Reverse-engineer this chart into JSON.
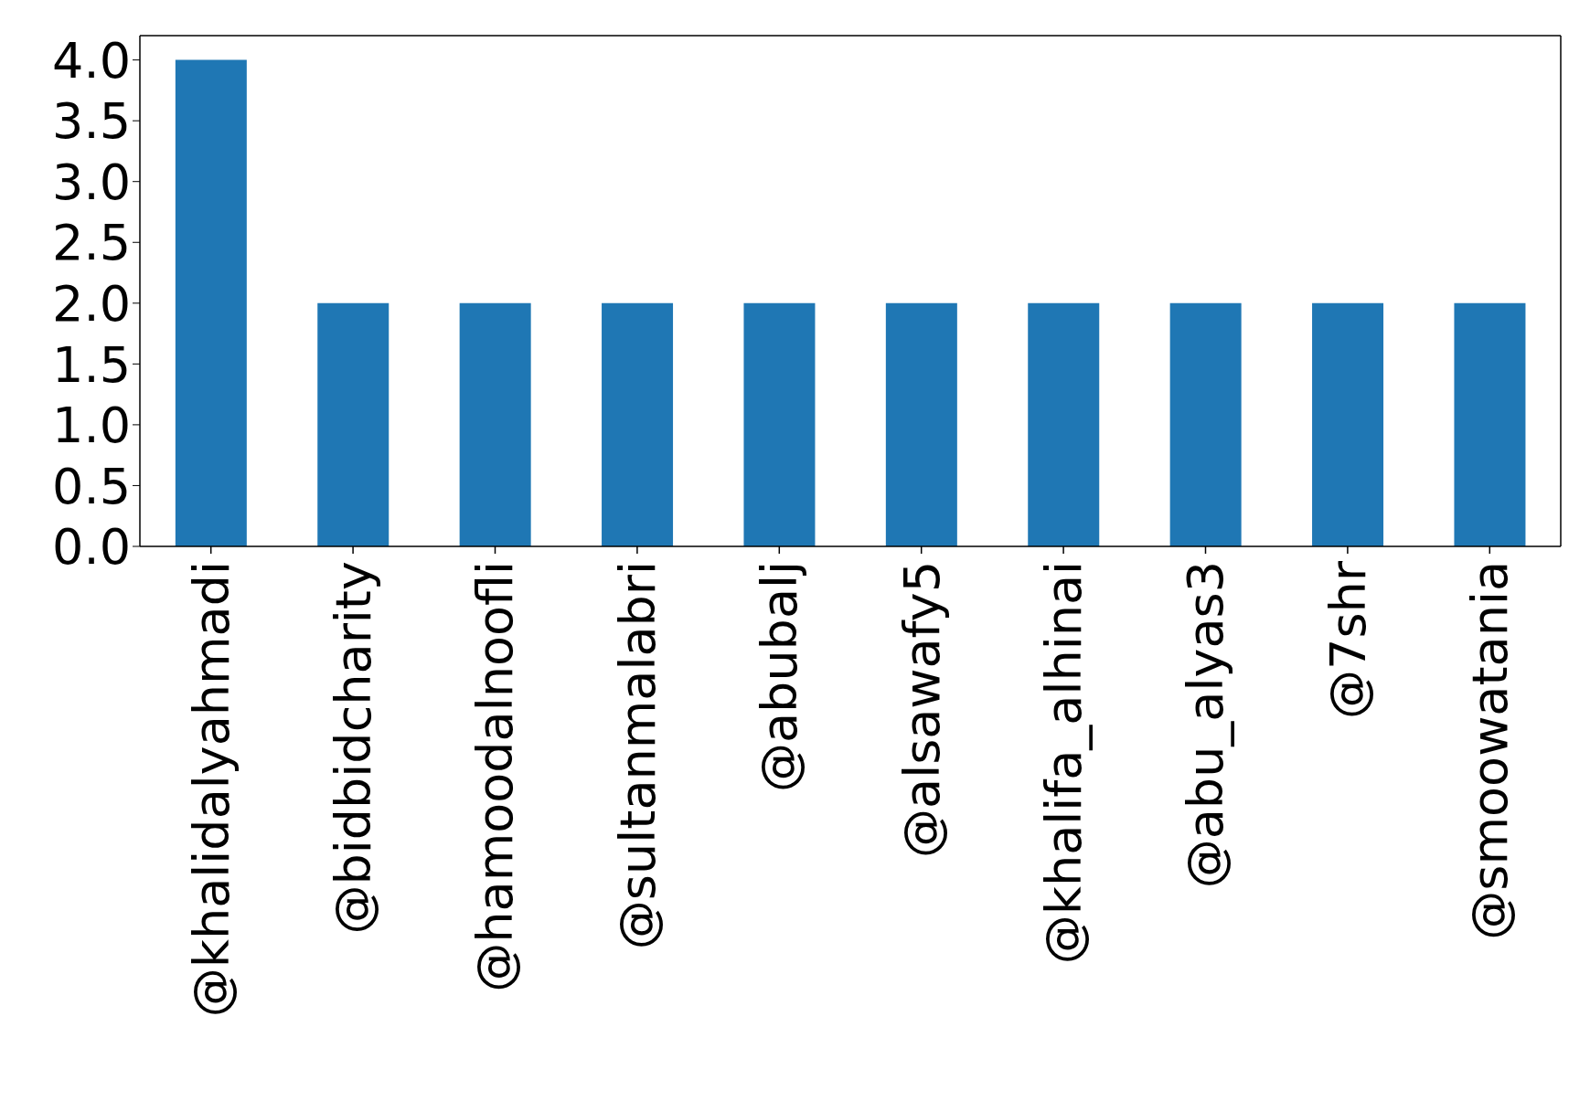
{
  "chart_data": {
    "type": "bar",
    "categories": [
      "@khalidalyahmadi",
      "@bidbidcharity",
      "@hamoodalnoofli",
      "@sultanmalabri",
      "@abubalj",
      "@alsawafy5",
      "@khalifa_alhinai",
      "@abu_alyas3",
      "@7shr",
      "@smoowatania"
    ],
    "values": [
      4,
      2,
      2,
      2,
      2,
      2,
      2,
      2,
      2,
      2
    ],
    "color": "#1f77b4",
    "ylim": [
      0,
      4.2
    ],
    "yticks": [
      {
        "value": 0,
        "label": "0.0"
      },
      {
        "value": 0.5,
        "label": "0.5"
      },
      {
        "value": 1,
        "label": "1.0"
      },
      {
        "value": 1.5,
        "label": "1.5"
      },
      {
        "value": 2,
        "label": "2.0"
      },
      {
        "value": 2.5,
        "label": "2.5"
      },
      {
        "value": 3,
        "label": "3.0"
      },
      {
        "value": 3.5,
        "label": "3.5"
      },
      {
        "value": 4,
        "label": "4.0"
      }
    ],
    "grid": false,
    "legend": false
  }
}
